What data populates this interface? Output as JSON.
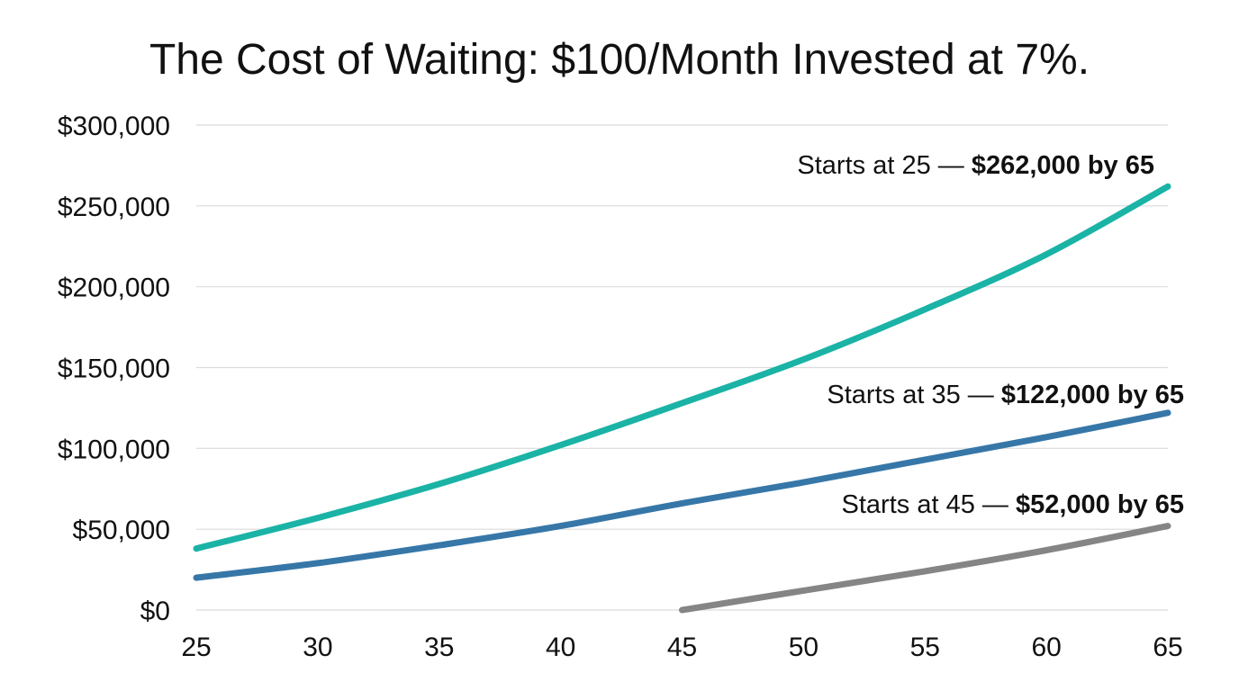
{
  "chart_data": {
    "type": "line",
    "title": "The Cost of Waiting: $100/Month Invested at 7%.",
    "xlabel": "",
    "ylabel": "",
    "xlim": [
      25,
      65
    ],
    "ylim": [
      0,
      300000
    ],
    "x_ticks": [
      25,
      30,
      35,
      40,
      45,
      50,
      55,
      60,
      65
    ],
    "x_tick_labels": [
      "25",
      "30",
      "35",
      "40",
      "45",
      "50",
      "55",
      "60",
      "65"
    ],
    "y_ticks": [
      0,
      50000,
      100000,
      150000,
      200000,
      250000,
      300000
    ],
    "y_tick_labels": [
      "$0",
      "$50,000",
      "$100,000",
      "$150,000",
      "$200,000",
      "$250,000",
      "$300,000"
    ],
    "grid": true,
    "legend": "none",
    "series": [
      {
        "color": "#1ab3a6",
        "x": [
          25,
          30,
          35,
          40,
          45,
          50,
          55,
          60,
          65
        ],
        "y": [
          38000,
          57000,
          78000,
          102000,
          128000,
          155000,
          186000,
          220000,
          262000
        ],
        "annotation": {
          "prefix": "Starts at 25 — ",
          "bold": "$262,000 by 65"
        }
      },
      {
        "color": "#3677a8",
        "x": [
          25,
          30,
          35,
          40,
          45,
          50,
          55,
          60,
          65
        ],
        "y": [
          20000,
          29000,
          40000,
          52000,
          66000,
          79000,
          93000,
          107000,
          122000
        ],
        "annotation": {
          "prefix": "Starts at 35 — ",
          "bold": "$122,000 by 65"
        }
      },
      {
        "color": "#858585",
        "x": [
          45,
          50,
          55,
          60,
          65
        ],
        "y": [
          0,
          12000,
          24000,
          37000,
          52000
        ],
        "annotation": {
          "prefix": "Starts at 45 — ",
          "bold": "$52,000 by 65"
        }
      }
    ]
  }
}
